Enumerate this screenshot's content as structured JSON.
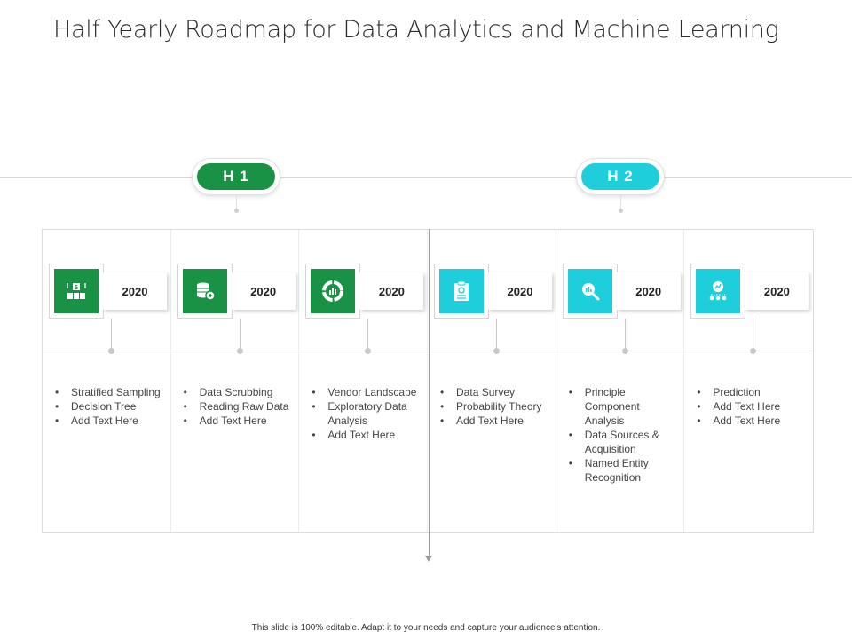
{
  "title": "Half Yearly Roadmap for Data Analytics and Machine Learning",
  "halves": [
    {
      "label": "H 1",
      "color": "#1a9246"
    },
    {
      "label": "H 2",
      "color": "#1ecfdb"
    }
  ],
  "columns": [
    {
      "year": "2020",
      "icon": "data-sampling-icon",
      "color": "#1a9246",
      "items": [
        "Stratified Sampling",
        "Decision Tree",
        "Add Text Here"
      ]
    },
    {
      "year": "2020",
      "icon": "database-gear-icon",
      "color": "#1a9246",
      "items": [
        "Data Scrubbing",
        "Reading Raw Data",
        "Add Text Here"
      ]
    },
    {
      "year": "2020",
      "icon": "pie-chart-icon",
      "color": "#1a9246",
      "items": [
        "Vendor Landscape",
        "Exploratory Data Analysis",
        "Add Text Here"
      ]
    },
    {
      "year": "2020",
      "icon": "clipboard-icon",
      "color": "#1ecfdb",
      "items": [
        "Data Survey",
        "Probability Theory",
        "Add Text Here"
      ]
    },
    {
      "year": "2020",
      "icon": "magnifier-chart-icon",
      "color": "#1ecfdb",
      "items": [
        "Principle Component Analysis",
        "Data Sources & Acquisition",
        "Named Entity Recognition"
      ]
    },
    {
      "year": "2020",
      "icon": "network-chart-icon",
      "color": "#1ecfdb",
      "items": [
        "Prediction",
        "Add Text Here",
        "Add Text Here"
      ]
    }
  ],
  "footer": "This slide is 100% editable. Adapt it to your needs and capture your audience's attention."
}
